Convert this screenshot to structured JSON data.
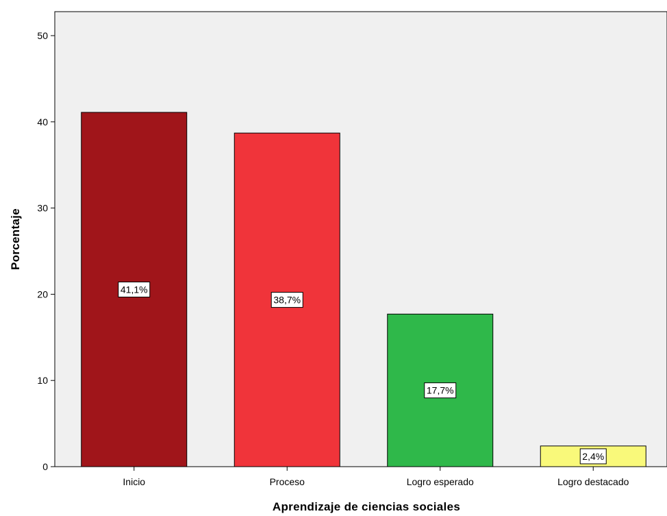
{
  "chart_data": {
    "type": "bar",
    "categories": [
      "Inicio",
      "Proceso",
      "Logro esperado",
      "Logro destacado"
    ],
    "values": [
      41.1,
      38.7,
      17.7,
      2.4
    ],
    "data_labels": [
      "41,1%",
      "38,7%",
      "17,7%",
      "2,4%"
    ],
    "colors": [
      "#a0151a",
      "#f0343a",
      "#2fb84a",
      "#f9f97a"
    ],
    "xlabel": "Aprendizaje  de ciencias sociales",
    "ylabel": "Porcentaje",
    "ylim": [
      0,
      50
    ],
    "yticks": [
      "0",
      "10",
      "20",
      "30",
      "40",
      "50"
    ],
    "plot_background": "#f0f0f0",
    "grid": false
  }
}
